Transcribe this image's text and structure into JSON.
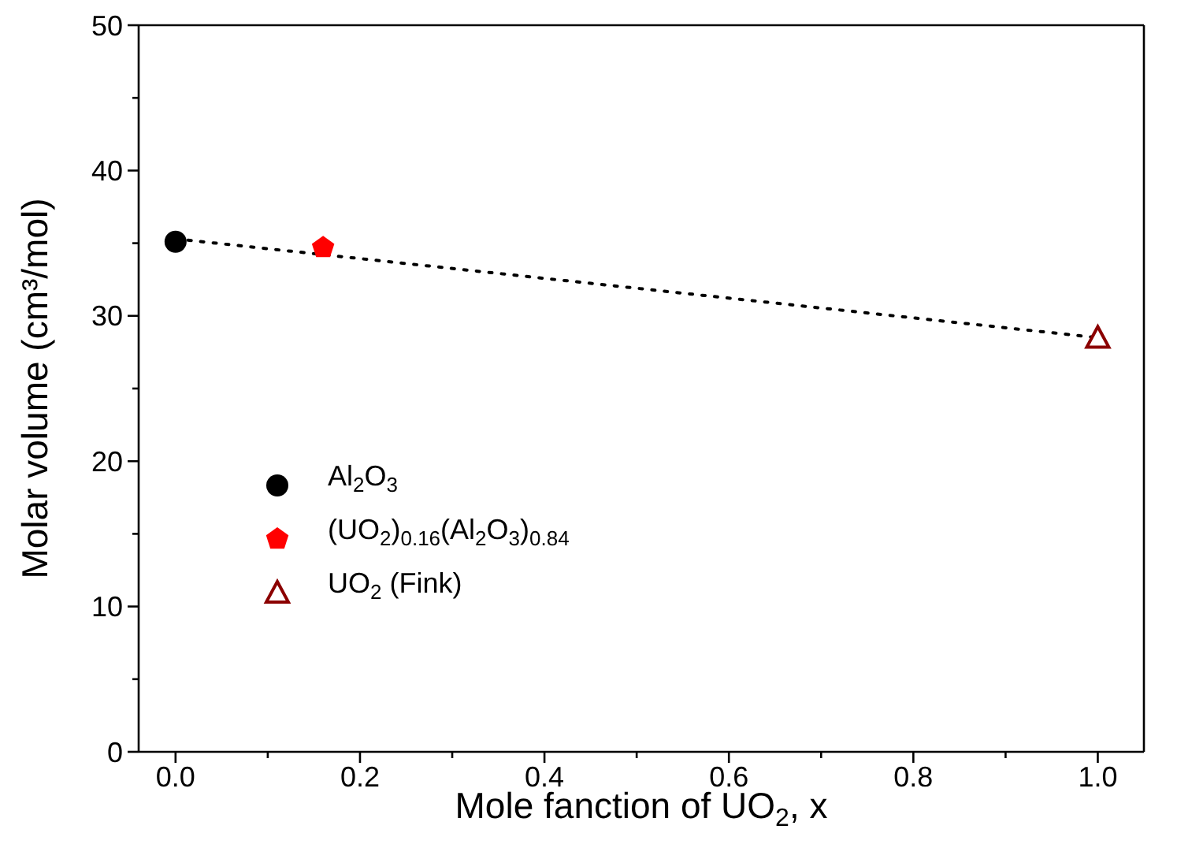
{
  "chart_data": {
    "type": "scatter",
    "xlabel": "Mole fanction of UO$_{2}$, x",
    "ylabel": "Molar volume (cm³/mol)",
    "xlim": [
      -0.04,
      1.05
    ],
    "xticks": [
      {
        "value": 0,
        "label": "0.0"
      },
      {
        "value": 0.1,
        "label": null
      },
      {
        "value": 0.2,
        "label": "0.2"
      },
      {
        "value": 0.3,
        "label": null
      },
      {
        "value": 0.4,
        "label": "0.4"
      },
      {
        "value": 0.5,
        "label": null
      },
      {
        "value": 0.6,
        "label": "0.6"
      },
      {
        "value": 0.7,
        "label": null
      },
      {
        "value": 0.8,
        "label": "0.8"
      },
      {
        "value": 0.9,
        "label": null
      },
      {
        "value": 1,
        "label": "1.0"
      }
    ],
    "ylim": [
      0,
      50
    ],
    "yticks": [
      0,
      {
        "value": 5,
        "label": null
      },
      10,
      {
        "value": 15,
        "label": null
      },
      20,
      {
        "value": 25,
        "label": null
      },
      30,
      {
        "value": 35,
        "label": null
      },
      40,
      {
        "value": 45,
        "label": null
      },
      50
    ],
    "legend": "left",
    "series": [
      {
        "type": "line",
        "x": [
          0,
          1
        ],
        "values": [
          35.3,
          28.5
        ],
        "color": "#000000",
        "line_style": "dotted",
        "marker": "none"
      },
      {
        "name": "Al$_{2}$O$_{3}$",
        "x": [
          0
        ],
        "values": [
          35.1
        ],
        "color": "#000000",
        "marker": "circle"
      },
      {
        "name": "(UO$_{2}$)$_{0.16}$(Al$_{2}$O$_{3}$)$_{0.84}$",
        "x": [
          0.16
        ],
        "values": [
          34.7
        ],
        "color": "#ff0000"
      },
      {
        "name": "UO$_{2}$ (Fink)",
        "x": [
          1
        ],
        "values": [
          28.5
        ],
        "color": "#8b0000",
        "marker": "triangle"
      }
    ]
  }
}
